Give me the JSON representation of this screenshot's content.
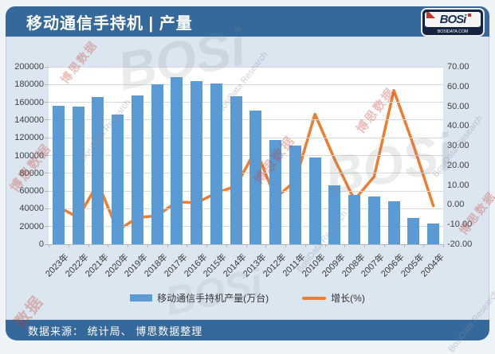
{
  "header": {
    "title": "移动通信手持机 | 产量"
  },
  "logo": {
    "text": "BOSi",
    "subtext": "BOSIDATA.COM"
  },
  "footer": {
    "source": "数据来源： 统计局、 博思数据整理"
  },
  "watermarks": {
    "brand": "BOSi",
    "cn": "博思数据",
    "en": "BosiData Research",
    "short": "数据"
  },
  "chart_data": {
    "type": "bar",
    "subtype": "bar+line combo, dual y-axis",
    "categories": [
      "2023年",
      "2022年",
      "2021年",
      "2020年",
      "2019年",
      "2018年",
      "2017年",
      "2016年",
      "2015年",
      "2014年",
      "2013年",
      "2012年",
      "2011年",
      "2010年",
      "2009年",
      "2008年",
      "2007年",
      "2006年",
      "2005年",
      "2004年"
    ],
    "series": [
      {
        "name": "移动通信手持机产量(万台)",
        "type": "bar",
        "yaxis": "left",
        "color": "#5B9BD5",
        "values": [
          156000,
          155000,
          166000,
          146000,
          168000,
          180000,
          188000,
          184000,
          181000,
          167000,
          151000,
          117500,
          111000,
          98000,
          66500,
          55500,
          54000,
          48000,
          30000,
          23000
        ]
      },
      {
        "name": "增长(%)",
        "type": "line",
        "yaxis": "right",
        "color": "#ED7D31",
        "values": [
          -1,
          -6.5,
          11,
          -13,
          -6.5,
          -5.5,
          1.5,
          1,
          6,
          9.5,
          28,
          3.5,
          12,
          46,
          23,
          2.5,
          14.3,
          58,
          30,
          -0.5
        ]
      }
    ],
    "left_axis": {
      "min": 0,
      "max": 200000,
      "ticks": [
        "200000",
        "180000",
        "160000",
        "140000",
        "120000",
        "100000",
        "80000",
        "60000",
        "40000",
        "20000",
        "0"
      ]
    },
    "right_axis": {
      "min": -20,
      "max": 70,
      "ticks": [
        "70.00",
        "60.00",
        "50.00",
        "40.00",
        "30.00",
        "20.00",
        "10.00",
        "0.00",
        "-10.00",
        "-20.00"
      ]
    },
    "grid": true,
    "legend_position": "bottom",
    "title": "移动通信手持机 | 产量",
    "source": "数据来源：统计局、博思数据整理"
  }
}
